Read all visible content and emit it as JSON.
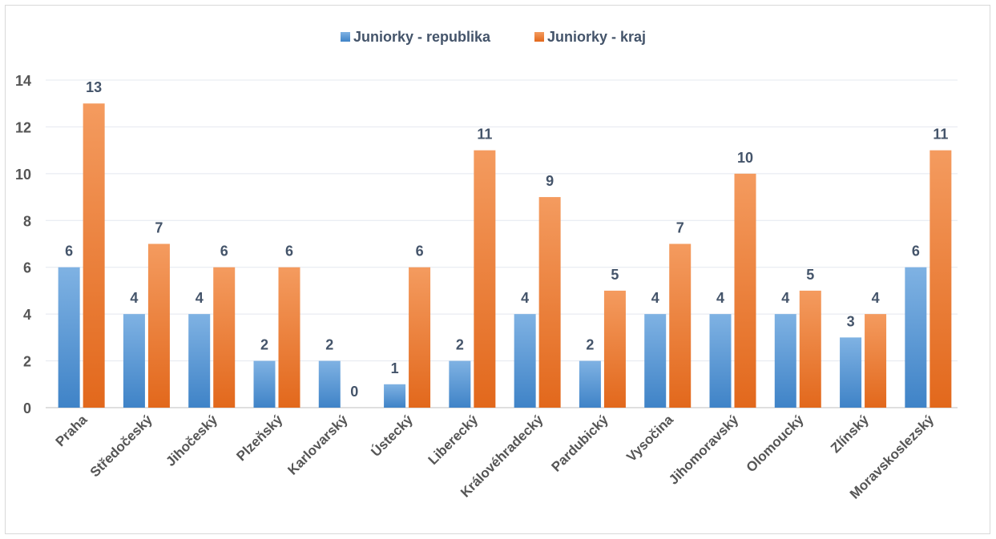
{
  "chart_data": {
    "type": "bar",
    "title": "",
    "xlabel": "",
    "ylabel": "",
    "ylim": [
      0,
      14
    ],
    "yticks": [
      0,
      2,
      4,
      6,
      8,
      10,
      12,
      14
    ],
    "grid": true,
    "legend_position": "top",
    "categories": [
      "Praha",
      "Středočeský",
      "Jihočeský",
      "Plzeňský",
      "Karlovarský",
      "Ústecký",
      "Liberecký",
      "Královéhradecký",
      "Pardubický",
      "Vysočina",
      "Jihomoravský",
      "Olomoucký",
      "Zlínský",
      "Moravskoslezský"
    ],
    "series": [
      {
        "name": "Juniorky - republika",
        "color": "#5b9bd5",
        "values": [
          6,
          4,
          4,
          2,
          2,
          1,
          2,
          4,
          2,
          4,
          4,
          4,
          3,
          6
        ]
      },
      {
        "name": "Juniorky - kraj",
        "color": "#ed7d31",
        "values": [
          13,
          7,
          6,
          6,
          0,
          6,
          11,
          9,
          5,
          7,
          10,
          5,
          4,
          11
        ]
      }
    ]
  }
}
